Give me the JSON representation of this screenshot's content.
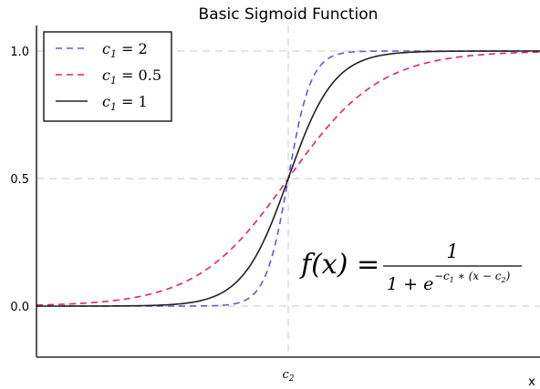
{
  "chart_data": {
    "type": "line",
    "title": "Basic Sigmoid Function",
    "xlabel": "x",
    "ylabel": "",
    "xlim": [
      -11,
      11
    ],
    "ylim": [
      -0.2,
      1.1
    ],
    "x_ticks": [
      {
        "value": 0,
        "label": "c",
        "subscript": "2"
      }
    ],
    "y_ticks": [
      {
        "value": 0.0,
        "label": "0.0"
      },
      {
        "value": 0.5,
        "label": "0.5"
      },
      {
        "value": 1.0,
        "label": "1.0"
      }
    ],
    "grid": true,
    "legend_position": "top-left",
    "formula": {
      "lhs": "f(x) =",
      "numerator": "1",
      "denominator_base": "1 + e",
      "exponent_prefix": "−c",
      "exponent_prefix_sub": "1",
      "exponent_suffix": " ∗ (x − c",
      "exponent_suffix_sub": "2",
      "exponent_close": ")"
    },
    "series": [
      {
        "name": "c1 = 2",
        "legend_var": "c",
        "legend_sub": "1",
        "legend_rest": " = 2",
        "c1": 2,
        "color": "#5b5bd6",
        "dash": "dashed",
        "x": [
          -11,
          -4,
          -3,
          -2,
          -1,
          0,
          1,
          2,
          3,
          4,
          11
        ],
        "y": [
          0.0,
          0.0003,
          0.0025,
          0.018,
          0.119,
          0.5,
          0.881,
          0.982,
          0.9975,
          0.9997,
          1.0
        ]
      },
      {
        "name": "c1 = 0.5",
        "legend_var": "c",
        "legend_sub": "1",
        "legend_rest": " = 0.5",
        "c1": 0.5,
        "color": "#e0226c",
        "dash": "dashed",
        "x": [
          -11,
          -8,
          -6,
          -4,
          -2,
          0,
          2,
          4,
          6,
          8,
          11
        ],
        "y": [
          0.004,
          0.018,
          0.047,
          0.119,
          0.269,
          0.5,
          0.731,
          0.881,
          0.953,
          0.982,
          0.996
        ]
      },
      {
        "name": "c1 = 1",
        "legend_var": "c",
        "legend_sub": "1",
        "legend_rest": " = 1",
        "c1": 1,
        "color": "#222222",
        "dash": "solid",
        "x": [
          -11,
          -6,
          -4,
          -2,
          -1,
          0,
          1,
          2,
          4,
          6,
          11
        ],
        "y": [
          0.0,
          0.0025,
          0.018,
          0.119,
          0.269,
          0.5,
          0.731,
          0.881,
          0.982,
          0.9975,
          1.0
        ]
      }
    ]
  }
}
